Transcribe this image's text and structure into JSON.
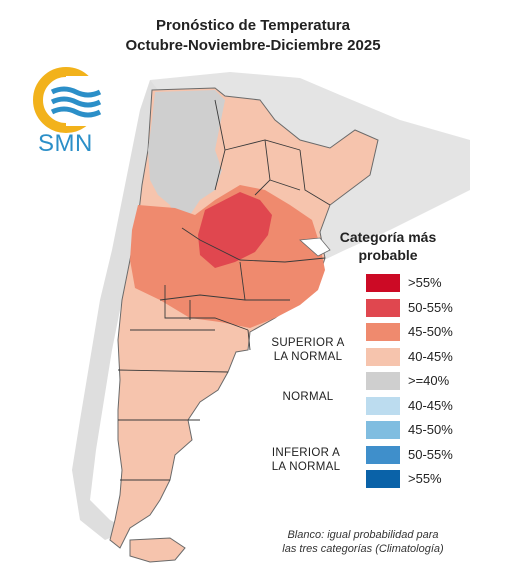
{
  "title": {
    "line1": "Pronóstico de Temperatura",
    "line2": "Octubre-Noviembre-Diciembre 2025"
  },
  "logo": {
    "text": "SMN",
    "icon": "smn-sun-waves-logo",
    "colors": {
      "sun": "#f2b21b",
      "waves": "#2b8fc8"
    }
  },
  "legend": {
    "title_line1": "Categoría más",
    "title_line2": "probable",
    "groups": {
      "superior": [
        "SUPERIOR A",
        "LA NORMAL"
      ],
      "normal": "NORMAL",
      "inferior": [
        "INFERIOR A",
        "LA NORMAL"
      ]
    },
    "items": [
      {
        "label": ">55%",
        "color": "#cc0a25"
      },
      {
        "label": "50-55%",
        "color": "#e0474f"
      },
      {
        "label": "45-50%",
        "color": "#ef8a6e"
      },
      {
        "label": "40-45%",
        "color": "#f6c4ad"
      },
      {
        "label": ">=40%",
        "color": "#cfcfcf"
      },
      {
        "label": "40-45%",
        "color": "#bcdcef"
      },
      {
        "label": "45-50%",
        "color": "#80bde0"
      },
      {
        "label": "50-55%",
        "color": "#3f8fcb"
      },
      {
        "label": ">55%",
        "color": "#0a62a8"
      }
    ],
    "footnote_line1": "Blanco: igual probabilidad para",
    "footnote_line2": "las tres categorías (Climatología)"
  },
  "map_colors": {
    "background": "#ffffff",
    "neighbors": "#e4e4e4",
    "coast": "#6a6a6a",
    "borders": "#3a3a3a"
  }
}
